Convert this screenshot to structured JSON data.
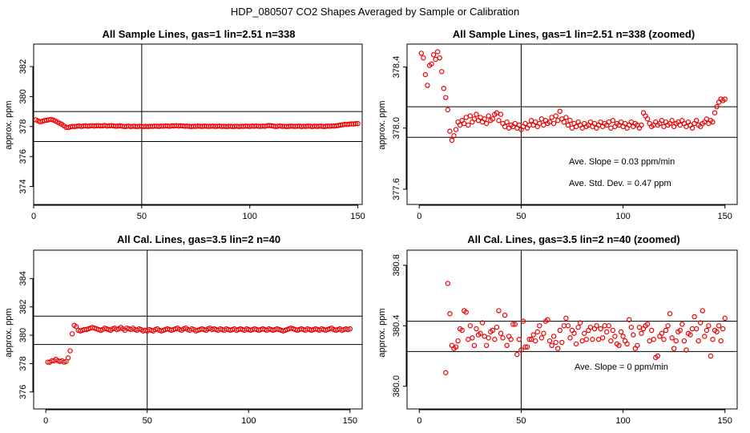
{
  "figure": {
    "title": "HDP_080507  CO2 Shapes Averaged by Sample or Calibration"
  },
  "chart_data": [
    {
      "type": "scatter",
      "title": "All Sample Lines, gas=1 lin=2.51 n=338",
      "ylabel": "approx. ppm",
      "xlim": [
        0,
        152
      ],
      "ylim": [
        372.8,
        383.5
      ],
      "xticks": [
        "0",
        "50",
        "100",
        "150"
      ],
      "xtick_values": [
        0,
        50,
        100,
        150
      ],
      "yticks": [
        "374",
        "376",
        "378",
        "380",
        "382"
      ],
      "ytick_values": [
        374,
        376,
        378,
        380,
        382
      ],
      "hlines": [
        379.0,
        377.0
      ],
      "vlines": [
        50
      ],
      "color": "#ee0000",
      "annotations": [],
      "x": [
        1,
        2,
        3,
        4,
        5,
        6,
        7,
        8,
        9,
        10,
        11,
        12,
        13,
        14,
        15,
        16,
        17,
        18,
        19,
        20,
        21,
        22,
        23,
        24,
        25,
        26,
        27,
        28,
        29,
        30,
        31,
        32,
        33,
        34,
        35,
        36,
        37,
        38,
        39,
        40,
        41,
        42,
        43,
        44,
        45,
        46,
        47,
        48,
        49,
        50,
        51,
        52,
        53,
        54,
        55,
        56,
        57,
        58,
        59,
        60,
        61,
        62,
        63,
        64,
        65,
        66,
        67,
        68,
        69,
        70,
        71,
        72,
        73,
        74,
        75,
        76,
        77,
        78,
        79,
        80,
        81,
        82,
        83,
        84,
        85,
        86,
        87,
        88,
        89,
        90,
        91,
        92,
        93,
        94,
        95,
        96,
        97,
        98,
        99,
        100,
        101,
        102,
        103,
        104,
        105,
        106,
        107,
        108,
        109,
        110,
        111,
        112,
        113,
        114,
        115,
        116,
        117,
        118,
        119,
        120,
        121,
        122,
        123,
        124,
        125,
        126,
        127,
        128,
        129,
        130,
        131,
        132,
        133,
        134,
        135,
        136,
        137,
        138,
        139,
        140,
        141,
        142,
        143,
        144,
        145,
        146,
        147,
        148,
        149,
        150
      ],
      "y": [
        378.45,
        378.38,
        378.32,
        378.35,
        378.4,
        378.42,
        378.45,
        378.48,
        378.44,
        378.38,
        378.3,
        378.22,
        378.15,
        378.05,
        377.95,
        377.93,
        377.98,
        378.01,
        378.0,
        378.02,
        378.04,
        378.01,
        378.03,
        378.05,
        378.02,
        378.04,
        378.06,
        378.03,
        378.05,
        378.06,
        378.04,
        378.05,
        378.07,
        378.03,
        378.05,
        378.06,
        378.04,
        378.02,
        378.03,
        378.05,
        378.02,
        378.0,
        378.01,
        378.03,
        378.0,
        378.02,
        378.01,
        378.0,
        378.02,
        378.01,
        378.0,
        378.01,
        378.0,
        378.02,
        378.01,
        378.03,
        378.02,
        378.01,
        378.03,
        378.02,
        378.04,
        378.03,
        378.02,
        378.05,
        378.04,
        378.06,
        378.03,
        378.05,
        378.04,
        378.02,
        378.03,
        378.01,
        378.0,
        378.02,
        378.01,
        378.03,
        378.02,
        378.01,
        378.03,
        378.02,
        378.01,
        378.02,
        378.03,
        378.01,
        378.02,
        378.03,
        378.01,
        378.02,
        378.0,
        378.01,
        378.02,
        378.0,
        378.01,
        378.02,
        378.0,
        378.02,
        378.01,
        378.03,
        378.02,
        378.01,
        378.03,
        378.02,
        378.04,
        378.02,
        378.01,
        378.03,
        378.02,
        378.05,
        378.07,
        378.05,
        378.03,
        378.0,
        378.02,
        378.04,
        378.01,
        378.02,
        378.0,
        378.01,
        378.03,
        378.02,
        378.01,
        378.02,
        378.03,
        378.0,
        378.02,
        378.01,
        378.03,
        378.02,
        378.0,
        378.03,
        378.01,
        378.02,
        378.03,
        378.0,
        378.01,
        378.03,
        378.02,
        378.04,
        378.03,
        378.05,
        378.07,
        378.1,
        378.12,
        378.15,
        378.14,
        378.16,
        378.18,
        378.17,
        378.19,
        378.2
      ]
    },
    {
      "type": "scatter",
      "title": "All Sample Lines, gas=1 lin=2.51 n=338 (zoomed)",
      "ylabel": "approx. ppm",
      "xlim": [
        -6,
        156
      ],
      "ylim": [
        377.5,
        378.55
      ],
      "xticks": [
        "0",
        "50",
        "100",
        "150"
      ],
      "xtick_values": [
        0,
        50,
        100,
        150
      ],
      "yticks": [
        "377.6",
        "378.0",
        "378.4"
      ],
      "ytick_values": [
        377.6,
        378.0,
        378.4
      ],
      "hlines": [
        378.14,
        377.94
      ],
      "vlines": [
        50
      ],
      "color": "#ee0000",
      "annotations": [
        "Ave. Slope =  0.03  ppm/min",
        "Ave. Std. Dev. =  0.47  ppm"
      ],
      "x": [
        1,
        2,
        3,
        4,
        5,
        6,
        7,
        8,
        9,
        10,
        11,
        12,
        13,
        14,
        15,
        16,
        17,
        18,
        19,
        20,
        21,
        22,
        23,
        24,
        25,
        26,
        27,
        28,
        29,
        30,
        31,
        32,
        33,
        34,
        35,
        36,
        37,
        38,
        39,
        40,
        41,
        42,
        43,
        44,
        45,
        46,
        47,
        48,
        49,
        50,
        51,
        52,
        53,
        54,
        55,
        56,
        57,
        58,
        59,
        60,
        61,
        62,
        63,
        64,
        65,
        66,
        67,
        68,
        69,
        70,
        71,
        72,
        73,
        74,
        75,
        76,
        77,
        78,
        79,
        80,
        81,
        82,
        83,
        84,
        85,
        86,
        87,
        88,
        89,
        90,
        91,
        92,
        93,
        94,
        95,
        96,
        97,
        98,
        99,
        100,
        101,
        102,
        103,
        104,
        105,
        106,
        107,
        108,
        109,
        110,
        111,
        112,
        113,
        114,
        115,
        116,
        117,
        118,
        119,
        120,
        121,
        122,
        123,
        124,
        125,
        126,
        127,
        128,
        129,
        130,
        131,
        132,
        133,
        134,
        135,
        136,
        137,
        138,
        139,
        140,
        141,
        142,
        143,
        144,
        145,
        146,
        147,
        148,
        149,
        150
      ],
      "y": [
        378.49,
        378.46,
        378.35,
        378.28,
        378.41,
        378.42,
        378.48,
        378.45,
        378.5,
        378.46,
        378.37,
        378.26,
        378.2,
        378.12,
        377.98,
        377.92,
        377.95,
        377.99,
        378.04,
        378.02,
        378.05,
        378.03,
        378.07,
        378.02,
        378.08,
        378.04,
        378.06,
        378.09,
        378.05,
        378.07,
        378.04,
        378.06,
        378.03,
        378.08,
        378.05,
        378.06,
        378.09,
        378.1,
        378.05,
        378.09,
        378.03,
        378.01,
        378.04,
        378.0,
        378.02,
        378.01,
        378.03,
        378.0,
        378.02,
        377.99,
        378.01,
        378.03,
        378.0,
        378.02,
        378.05,
        378.02,
        378.04,
        378.01,
        378.03,
        378.06,
        378.02,
        378.05,
        378.03,
        378.04,
        378.07,
        378.03,
        378.08,
        378.05,
        378.11,
        378.06,
        378.04,
        378.07,
        378.02,
        378.05,
        378.0,
        378.03,
        378.01,
        378.04,
        378.02,
        378.0,
        378.03,
        378.01,
        378.02,
        378.04,
        378.01,
        378.03,
        378.0,
        378.02,
        378.04,
        378.01,
        378.03,
        378.02,
        378.04,
        378.0,
        378.05,
        378.01,
        378.03,
        378.02,
        378.04,
        378.01,
        378.03,
        378.0,
        378.02,
        378.04,
        378.01,
        378.03,
        378.02,
        378.0,
        378.02,
        378.1,
        378.08,
        378.06,
        378.03,
        378.01,
        378.02,
        378.04,
        378.02,
        378.03,
        378.05,
        378.01,
        378.04,
        378.02,
        378.03,
        378.05,
        378.01,
        378.03,
        378.04,
        378.02,
        378.05,
        378.03,
        378.01,
        378.04,
        378.02,
        378.0,
        378.03,
        378.05,
        378.02,
        378.01,
        378.03,
        378.04,
        378.06,
        378.03,
        378.05,
        378.04,
        378.1,
        378.14,
        378.17,
        378.19,
        378.18,
        378.19
      ]
    },
    {
      "type": "scatter",
      "title": "All Cal. Lines, gas=3.5 lin=2 n=40",
      "ylabel": "approx. ppm",
      "xlim": [
        -6,
        156
      ],
      "ylim": [
        374.8,
        386.0
      ],
      "xticks": [
        "0",
        "50",
        "100",
        "150"
      ],
      "xtick_values": [
        0,
        50,
        100,
        150
      ],
      "yticks": [
        "376",
        "378",
        "380",
        "382",
        "384"
      ],
      "ytick_values": [
        376,
        378,
        380,
        382,
        384
      ],
      "hlines": [
        381.35,
        379.35
      ],
      "vlines": [
        50
      ],
      "color": "#ee0000",
      "annotations": [],
      "x": [
        1,
        2,
        3,
        4,
        5,
        6,
        7,
        8,
        9,
        10,
        11,
        12,
        13,
        14,
        15,
        16,
        17,
        18,
        19,
        20,
        21,
        22,
        23,
        24,
        25,
        26,
        27,
        28,
        29,
        30,
        31,
        32,
        33,
        34,
        35,
        36,
        37,
        38,
        39,
        40,
        41,
        42,
        43,
        44,
        45,
        46,
        47,
        48,
        49,
        50,
        51,
        52,
        53,
        54,
        55,
        56,
        57,
        58,
        59,
        60,
        61,
        62,
        63,
        64,
        65,
        66,
        67,
        68,
        69,
        70,
        71,
        72,
        73,
        74,
        75,
        76,
        77,
        78,
        79,
        80,
        81,
        82,
        83,
        84,
        85,
        86,
        87,
        88,
        89,
        90,
        91,
        92,
        93,
        94,
        95,
        96,
        97,
        98,
        99,
        100,
        101,
        102,
        103,
        104,
        105,
        106,
        107,
        108,
        109,
        110,
        111,
        112,
        113,
        114,
        115,
        116,
        117,
        118,
        119,
        120,
        121,
        122,
        123,
        124,
        125,
        126,
        127,
        128,
        129,
        130,
        131,
        132,
        133,
        134,
        135,
        136,
        137,
        138,
        139,
        140,
        141,
        142,
        143,
        144,
        145,
        146,
        147,
        148,
        149,
        150
      ],
      "y": [
        378.1,
        378.1,
        378.2,
        378.2,
        378.3,
        378.2,
        378.15,
        378.2,
        378.1,
        378.15,
        378.4,
        378.9,
        380.1,
        380.7,
        380.6,
        380.35,
        380.3,
        380.35,
        380.4,
        380.4,
        380.45,
        380.5,
        380.55,
        380.5,
        380.45,
        380.4,
        380.35,
        380.4,
        380.5,
        380.45,
        380.4,
        380.35,
        380.45,
        380.5,
        380.4,
        380.45,
        380.55,
        380.45,
        380.35,
        380.5,
        380.45,
        380.4,
        380.5,
        380.4,
        380.35,
        380.45,
        380.4,
        380.3,
        380.35,
        380.3,
        380.4,
        380.35,
        380.3,
        380.4,
        380.45,
        380.35,
        380.3,
        380.35,
        380.4,
        380.45,
        380.4,
        380.35,
        380.4,
        380.45,
        380.5,
        380.4,
        380.35,
        380.45,
        380.5,
        380.4,
        380.35,
        380.45,
        380.4,
        380.3,
        380.35,
        380.4,
        380.45,
        380.4,
        380.35,
        380.45,
        380.5,
        380.4,
        380.45,
        380.4,
        380.35,
        380.45,
        380.4,
        380.35,
        380.45,
        380.4,
        380.35,
        380.4,
        380.45,
        380.35,
        380.4,
        380.45,
        380.4,
        380.35,
        380.45,
        380.4,
        380.35,
        380.4,
        380.45,
        380.4,
        380.35,
        380.4,
        380.45,
        380.4,
        380.35,
        380.45,
        380.4,
        380.35,
        380.4,
        380.45,
        380.4,
        380.35,
        380.3,
        380.35,
        380.4,
        380.45,
        380.5,
        380.45,
        380.4,
        380.35,
        380.4,
        380.45,
        380.4,
        380.35,
        380.45,
        380.4,
        380.35,
        380.4,
        380.45,
        380.4,
        380.35,
        380.45,
        380.4,
        380.35,
        380.4,
        380.45,
        380.5,
        380.4,
        380.35,
        380.4,
        380.45,
        380.35,
        380.4,
        380.45,
        380.4,
        380.45
      ]
    },
    {
      "type": "scatter",
      "title": "All Cal. Lines, gas=3.5 lin=2 n=40 (zoomed)",
      "ylabel": "approx. ppm",
      "xlim": [
        -6,
        156
      ],
      "ylim": [
        379.85,
        380.9
      ],
      "xticks": [
        "0",
        "50",
        "100",
        "150"
      ],
      "xtick_values": [
        0,
        50,
        100,
        150
      ],
      "yticks": [
        "380.0",
        "380.4",
        "380.8"
      ],
      "ytick_values": [
        380.0,
        380.4,
        380.8
      ],
      "hlines": [
        380.43,
        380.23
      ],
      "vlines": [
        50
      ],
      "color": "#ee0000",
      "annotations": [
        "Ave. Slope =  0  ppm/min"
      ],
      "x": [
        13,
        14,
        15,
        16,
        17,
        18,
        19,
        20,
        21,
        22,
        23,
        24,
        25,
        26,
        27,
        28,
        29,
        30,
        31,
        32,
        33,
        34,
        35,
        36,
        37,
        38,
        39,
        40,
        41,
        42,
        43,
        44,
        45,
        46,
        47,
        48,
        49,
        50,
        51,
        52,
        53,
        54,
        55,
        56,
        57,
        58,
        59,
        60,
        61,
        62,
        63,
        64,
        65,
        66,
        67,
        68,
        69,
        70,
        71,
        72,
        73,
        74,
        75,
        76,
        77,
        78,
        79,
        80,
        81,
        82,
        83,
        84,
        85,
        86,
        87,
        88,
        89,
        90,
        91,
        92,
        93,
        94,
        95,
        96,
        97,
        98,
        99,
        100,
        101,
        102,
        103,
        104,
        105,
        106,
        107,
        108,
        109,
        110,
        111,
        112,
        113,
        114,
        115,
        116,
        117,
        118,
        119,
        120,
        121,
        122,
        123,
        124,
        125,
        126,
        127,
        128,
        129,
        130,
        131,
        132,
        133,
        134,
        135,
        136,
        137,
        138,
        139,
        140,
        141,
        142,
        143,
        144,
        145,
        146,
        147,
        148,
        149,
        150
      ],
      "y": [
        380.09,
        380.68,
        380.48,
        380.27,
        380.25,
        380.26,
        380.3,
        380.38,
        380.37,
        380.5,
        380.49,
        380.31,
        380.4,
        380.32,
        380.27,
        380.38,
        380.34,
        380.35,
        380.42,
        380.33,
        380.27,
        380.32,
        380.36,
        380.37,
        380.31,
        380.39,
        380.5,
        380.35,
        380.32,
        380.47,
        380.27,
        380.33,
        380.31,
        380.41,
        380.41,
        380.21,
        380.31,
        380.24,
        380.43,
        380.26,
        380.26,
        380.31,
        380.31,
        380.34,
        380.3,
        380.36,
        380.4,
        380.32,
        380.35,
        380.43,
        380.44,
        380.3,
        380.27,
        380.33,
        380.29,
        380.25,
        380.37,
        380.29,
        380.4,
        380.45,
        380.4,
        380.32,
        380.37,
        380.35,
        380.28,
        380.39,
        380.42,
        380.3,
        380.35,
        380.31,
        380.37,
        380.39,
        380.31,
        380.38,
        380.4,
        380.31,
        380.38,
        380.32,
        380.4,
        380.36,
        380.4,
        380.3,
        380.37,
        380.33,
        380.28,
        380.27,
        380.36,
        380.33,
        380.3,
        380.28,
        380.44,
        380.39,
        380.34,
        380.25,
        380.27,
        380.39,
        380.35,
        380.38,
        380.4,
        380.41,
        380.3,
        380.37,
        380.31,
        380.19,
        380.2,
        380.33,
        380.35,
        380.31,
        380.37,
        380.4,
        380.48,
        380.32,
        380.25,
        380.3,
        380.36,
        380.37,
        380.41,
        380.3,
        380.24,
        380.35,
        380.34,
        380.38,
        380.46,
        380.38,
        380.3,
        380.42,
        380.5,
        380.33,
        380.37,
        380.4,
        380.2,
        380.31,
        380.37,
        380.36,
        380.4,
        380.3,
        380.38,
        380.45
      ]
    }
  ]
}
